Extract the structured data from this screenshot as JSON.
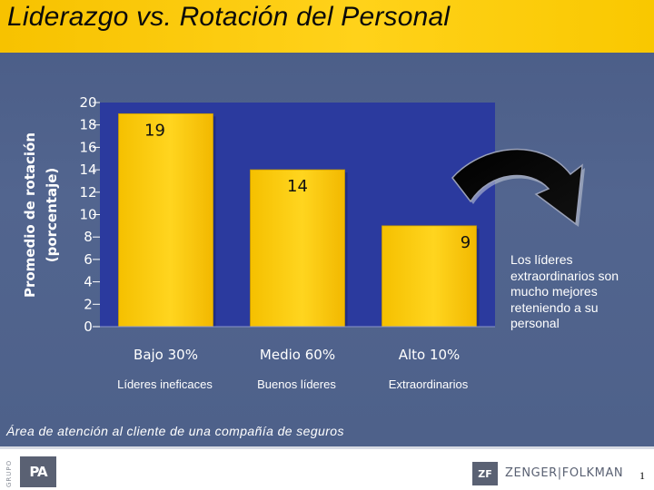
{
  "title": "Liderazgo vs. Rotación del Personal",
  "colors": {
    "background": "#4f628b",
    "title_bar": "#ffd21a",
    "plot_area": "#2b3a9e",
    "bar_fill": "#ffd21a",
    "arrow": "#000000"
  },
  "chart_data": {
    "type": "bar",
    "categories": [
      "Bajo 30%",
      "Medio 60%",
      "Alto  10%"
    ],
    "sub_labels": [
      "Líderes ineficaces",
      "Buenos líderes",
      "Extraordinarios"
    ],
    "values": [
      19,
      14,
      9
    ],
    "data_labels": [
      "19",
      "14",
      "9"
    ],
    "ylabel_line1": "Promedio de rotación",
    "ylabel_line2": "(porcentaje)",
    "ylim": [
      0,
      20
    ],
    "yticks": [
      "0",
      "2",
      "4",
      "6",
      "8",
      "10",
      "12",
      "14",
      "16",
      "18",
      "20"
    ],
    "grid": true
  },
  "annotation": "Los líderes extraordinarios son mucho mejores reteniendo a su personal",
  "caption": "Área de atención al cliente de una compañía de seguros",
  "footer": {
    "left_logo_grupo": "GRUPO",
    "left_logo_mark": "PA",
    "right_logo_mark": "ZF",
    "right_logo_text": "ZENGER|FOLKMAN",
    "page_number": "1"
  }
}
